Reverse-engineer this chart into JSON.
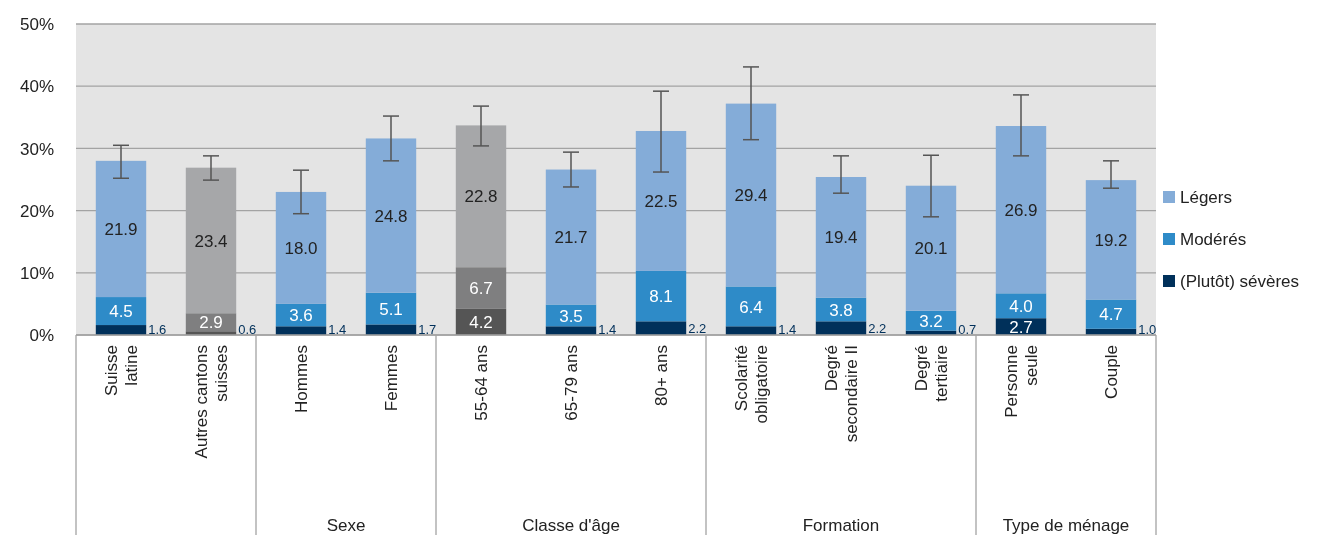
{
  "chart_data": {
    "type": "bar",
    "stacked": true,
    "categories": [
      "Suisse latine",
      "Autres cantons suisses",
      "Hommes",
      "Femmes",
      "55-64 ans",
      "65-79 ans",
      "80+ ans",
      "Scolarité obligatoire",
      "Degré secondaire II",
      "Degré tertiaire",
      "Personne seule",
      "Couple"
    ],
    "series": [
      {
        "name": "(Plutôt) sévères",
        "color": "#00305a",
        "colors": [
          "#00305a",
          "#555555",
          "#00305a",
          "#00305a",
          "#555555",
          "#00305a",
          "#00305a",
          "#00305a",
          "#00305a",
          "#00305a",
          "#00305a",
          "#00305a"
        ],
        "values": [
          1.6,
          0.6,
          1.4,
          1.7,
          4.2,
          1.4,
          2.2,
          1.4,
          2.2,
          0.7,
          2.7,
          1.0
        ],
        "value_labels": [
          "1.6",
          "0.6",
          "1.4",
          "1.7",
          "4.2",
          "1.4",
          "2.2",
          "1.4",
          "2.2",
          "0.7",
          "2.7",
          "1.0"
        ]
      },
      {
        "name": "Modérés",
        "color": "#2e8bc8",
        "colors": [
          "#2e8bc8",
          "#7f7f80",
          "#2e8bc8",
          "#2e8bc8",
          "#7f7f80",
          "#2e8bc8",
          "#2e8bc8",
          "#2e8bc8",
          "#2e8bc8",
          "#2e8bc8",
          "#2e8bc8",
          "#2e8bc8"
        ],
        "values": [
          4.5,
          2.9,
          3.6,
          5.1,
          6.7,
          3.5,
          8.1,
          6.4,
          3.8,
          3.2,
          4.0,
          4.7
        ],
        "value_labels": [
          "4.5",
          "2.9",
          "3.6",
          "5.1",
          "6.7",
          "3.5",
          "8.1",
          "6.4",
          "3.8",
          "3.2",
          "4.0",
          "4.7"
        ]
      },
      {
        "name": "Légers",
        "color": "#84acd8",
        "colors": [
          "#84acd8",
          "#a6a7a9",
          "#84acd8",
          "#84acd8",
          "#a6a7a9",
          "#84acd8",
          "#84acd8",
          "#84acd8",
          "#84acd8",
          "#84acd8",
          "#84acd8",
          "#84acd8"
        ],
        "values": [
          21.9,
          23.4,
          18.0,
          24.8,
          22.8,
          21.7,
          22.5,
          29.4,
          19.4,
          20.1,
          26.9,
          19.2
        ],
        "value_labels": [
          "21.9",
          "23.4",
          "18.0",
          "24.8",
          "22.8",
          "21.7",
          "22.5",
          "29.4",
          "19.4",
          "20.1",
          "26.9",
          "19.2"
        ],
        "errors": [
          [
            25.2,
            30.5
          ],
          [
            24.9,
            28.8
          ],
          [
            19.5,
            26.5
          ],
          [
            28.0,
            35.2
          ],
          [
            30.4,
            36.8
          ],
          [
            23.8,
            29.4
          ],
          [
            26.2,
            39.2
          ],
          [
            31.4,
            43.1
          ],
          [
            22.8,
            28.8
          ],
          [
            19.0,
            28.9
          ],
          [
            28.8,
            38.6
          ],
          [
            23.6,
            28.0
          ]
        ]
      }
    ],
    "ylim": [
      0,
      50
    ],
    "yticks": [
      {
        "value": 0,
        "label": "0%"
      },
      {
        "value": 10,
        "label": "10%"
      },
      {
        "value": 20,
        "label": "20%"
      },
      {
        "value": 30,
        "label": "30%"
      },
      {
        "value": 40,
        "label": "40%"
      },
      {
        "value": 50,
        "label": "50%"
      }
    ],
    "grid": "y",
    "legend": "right",
    "annotations": [
      "Sexe",
      "Classe d'âge",
      "Formation",
      "Type de ménage"
    ]
  }
}
